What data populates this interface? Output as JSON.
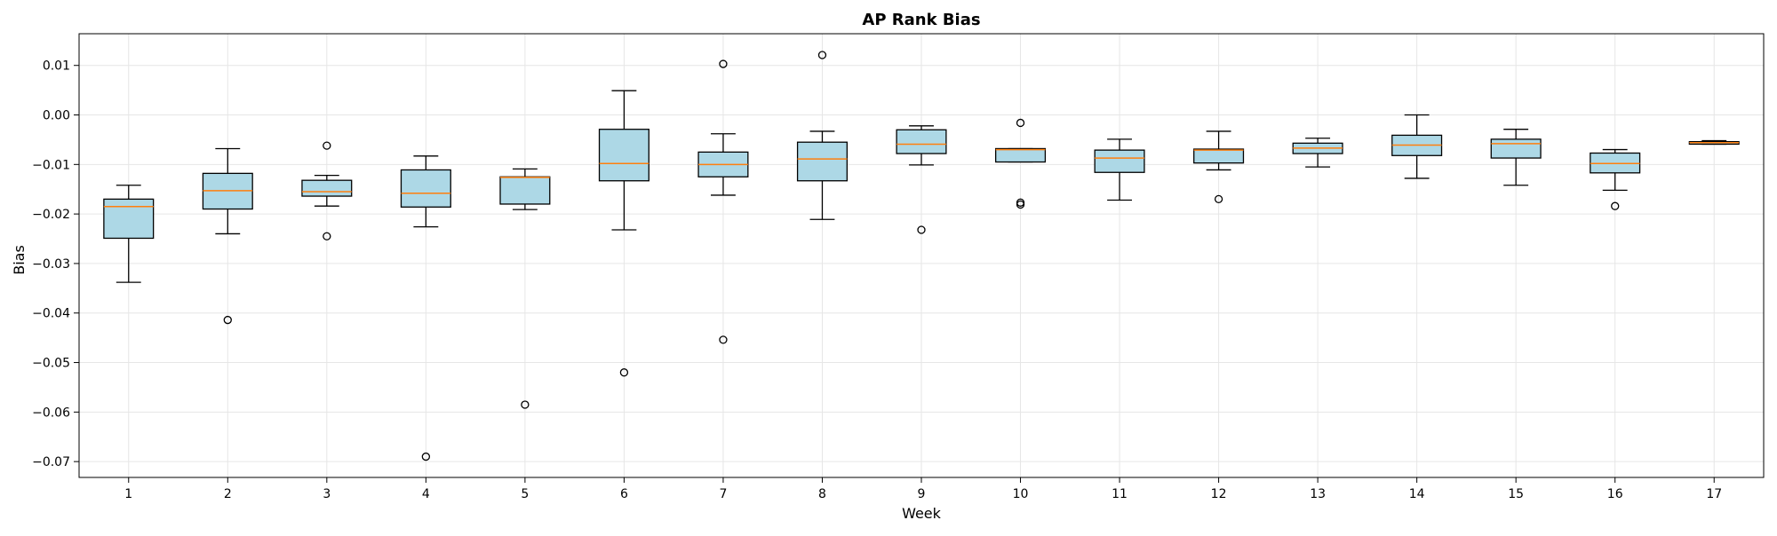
{
  "chart_data": {
    "type": "box",
    "title": "AP Rank Bias",
    "xlabel": "Week",
    "ylabel": "Bias",
    "ylim": [
      -0.0732,
      0.0164
    ],
    "yticks": [
      0.01,
      0.0,
      -0.01,
      -0.02,
      -0.03,
      -0.04,
      -0.05,
      -0.06,
      -0.07
    ],
    "ytick_labels": [
      "0.01",
      "0.00",
      "−0.01",
      "−0.02",
      "−0.03",
      "−0.04",
      "−0.05",
      "−0.06",
      "−0.07"
    ],
    "grid": true,
    "colors": {
      "box_fill": "#add8e6",
      "box_edge": "#000000",
      "median": "#ff7f0e",
      "grid": "#e6e6e6"
    },
    "categories": [
      "1",
      "2",
      "3",
      "4",
      "5",
      "6",
      "7",
      "8",
      "9",
      "10",
      "11",
      "12",
      "13",
      "14",
      "15",
      "16",
      "17"
    ],
    "boxes": [
      {
        "label": "1",
        "whislo": -0.0338,
        "q1": -0.0249,
        "median": -0.0185,
        "q3": -0.017,
        "whishi": -0.0142,
        "fliers": []
      },
      {
        "label": "2",
        "whislo": -0.024,
        "q1": -0.019,
        "median": -0.0153,
        "q3": -0.0118,
        "whishi": -0.0068,
        "fliers": [
          -0.0414
        ]
      },
      {
        "label": "3",
        "whislo": -0.0184,
        "q1": -0.0164,
        "median": -0.0155,
        "q3": -0.0132,
        "whishi": -0.0122,
        "fliers": [
          -0.0062,
          -0.0245
        ]
      },
      {
        "label": "4",
        "whislo": -0.0226,
        "q1": -0.0186,
        "median": -0.0158,
        "q3": -0.0111,
        "whishi": -0.0083,
        "fliers": [
          -0.069
        ]
      },
      {
        "label": "5",
        "whislo": -0.0191,
        "q1": -0.018,
        "median": -0.0126,
        "q3": -0.0125,
        "whishi": -0.0109,
        "fliers": [
          -0.0585
        ]
      },
      {
        "label": "6",
        "whislo": -0.0232,
        "q1": -0.0133,
        "median": -0.0098,
        "q3": -0.0029,
        "whishi": 0.0049,
        "fliers": [
          -0.052
        ]
      },
      {
        "label": "7",
        "whislo": -0.0162,
        "q1": -0.0125,
        "median": -0.01,
        "q3": -0.0075,
        "whishi": -0.0038,
        "fliers": [
          0.0103,
          -0.0454
        ]
      },
      {
        "label": "8",
        "whislo": -0.0211,
        "q1": -0.0133,
        "median": -0.0089,
        "q3": -0.0055,
        "whishi": -0.0033,
        "fliers": [
          0.0121
        ]
      },
      {
        "label": "9",
        "whislo": -0.0101,
        "q1": -0.0078,
        "median": -0.0059,
        "q3": -0.003,
        "whishi": -0.0022,
        "fliers": [
          -0.0232
        ]
      },
      {
        "label": "10",
        "whislo": -0.0095,
        "q1": -0.0095,
        "median": -0.007,
        "q3": -0.0068,
        "whishi": -0.0068,
        "fliers": [
          -0.0016,
          -0.0177,
          -0.0181
        ]
      },
      {
        "label": "11",
        "whislo": -0.0172,
        "q1": -0.0116,
        "median": -0.0087,
        "q3": -0.0071,
        "whishi": -0.0049,
        "fliers": []
      },
      {
        "label": "12",
        "whislo": -0.0111,
        "q1": -0.0097,
        "median": -0.0071,
        "q3": -0.0069,
        "whishi": -0.0033,
        "fliers": [
          -0.017
        ]
      },
      {
        "label": "13",
        "whislo": -0.0105,
        "q1": -0.0078,
        "median": -0.0067,
        "q3": -0.0057,
        "whishi": -0.0047,
        "fliers": []
      },
      {
        "label": "14",
        "whislo": -0.0128,
        "q1": -0.0082,
        "median": -0.0061,
        "q3": -0.0041,
        "whishi": 0.0,
        "fliers": []
      },
      {
        "label": "15",
        "whislo": -0.0142,
        "q1": -0.0087,
        "median": -0.0058,
        "q3": -0.0049,
        "whishi": -0.0029,
        "fliers": []
      },
      {
        "label": "16",
        "whislo": -0.0152,
        "q1": -0.0117,
        "median": -0.0098,
        "q3": -0.0077,
        "whishi": -0.007,
        "fliers": [
          -0.0184
        ]
      },
      {
        "label": "17",
        "whislo": -0.0059,
        "q1": -0.0059,
        "median": -0.0056,
        "q3": -0.0054,
        "whishi": -0.0052,
        "fliers": []
      }
    ]
  }
}
